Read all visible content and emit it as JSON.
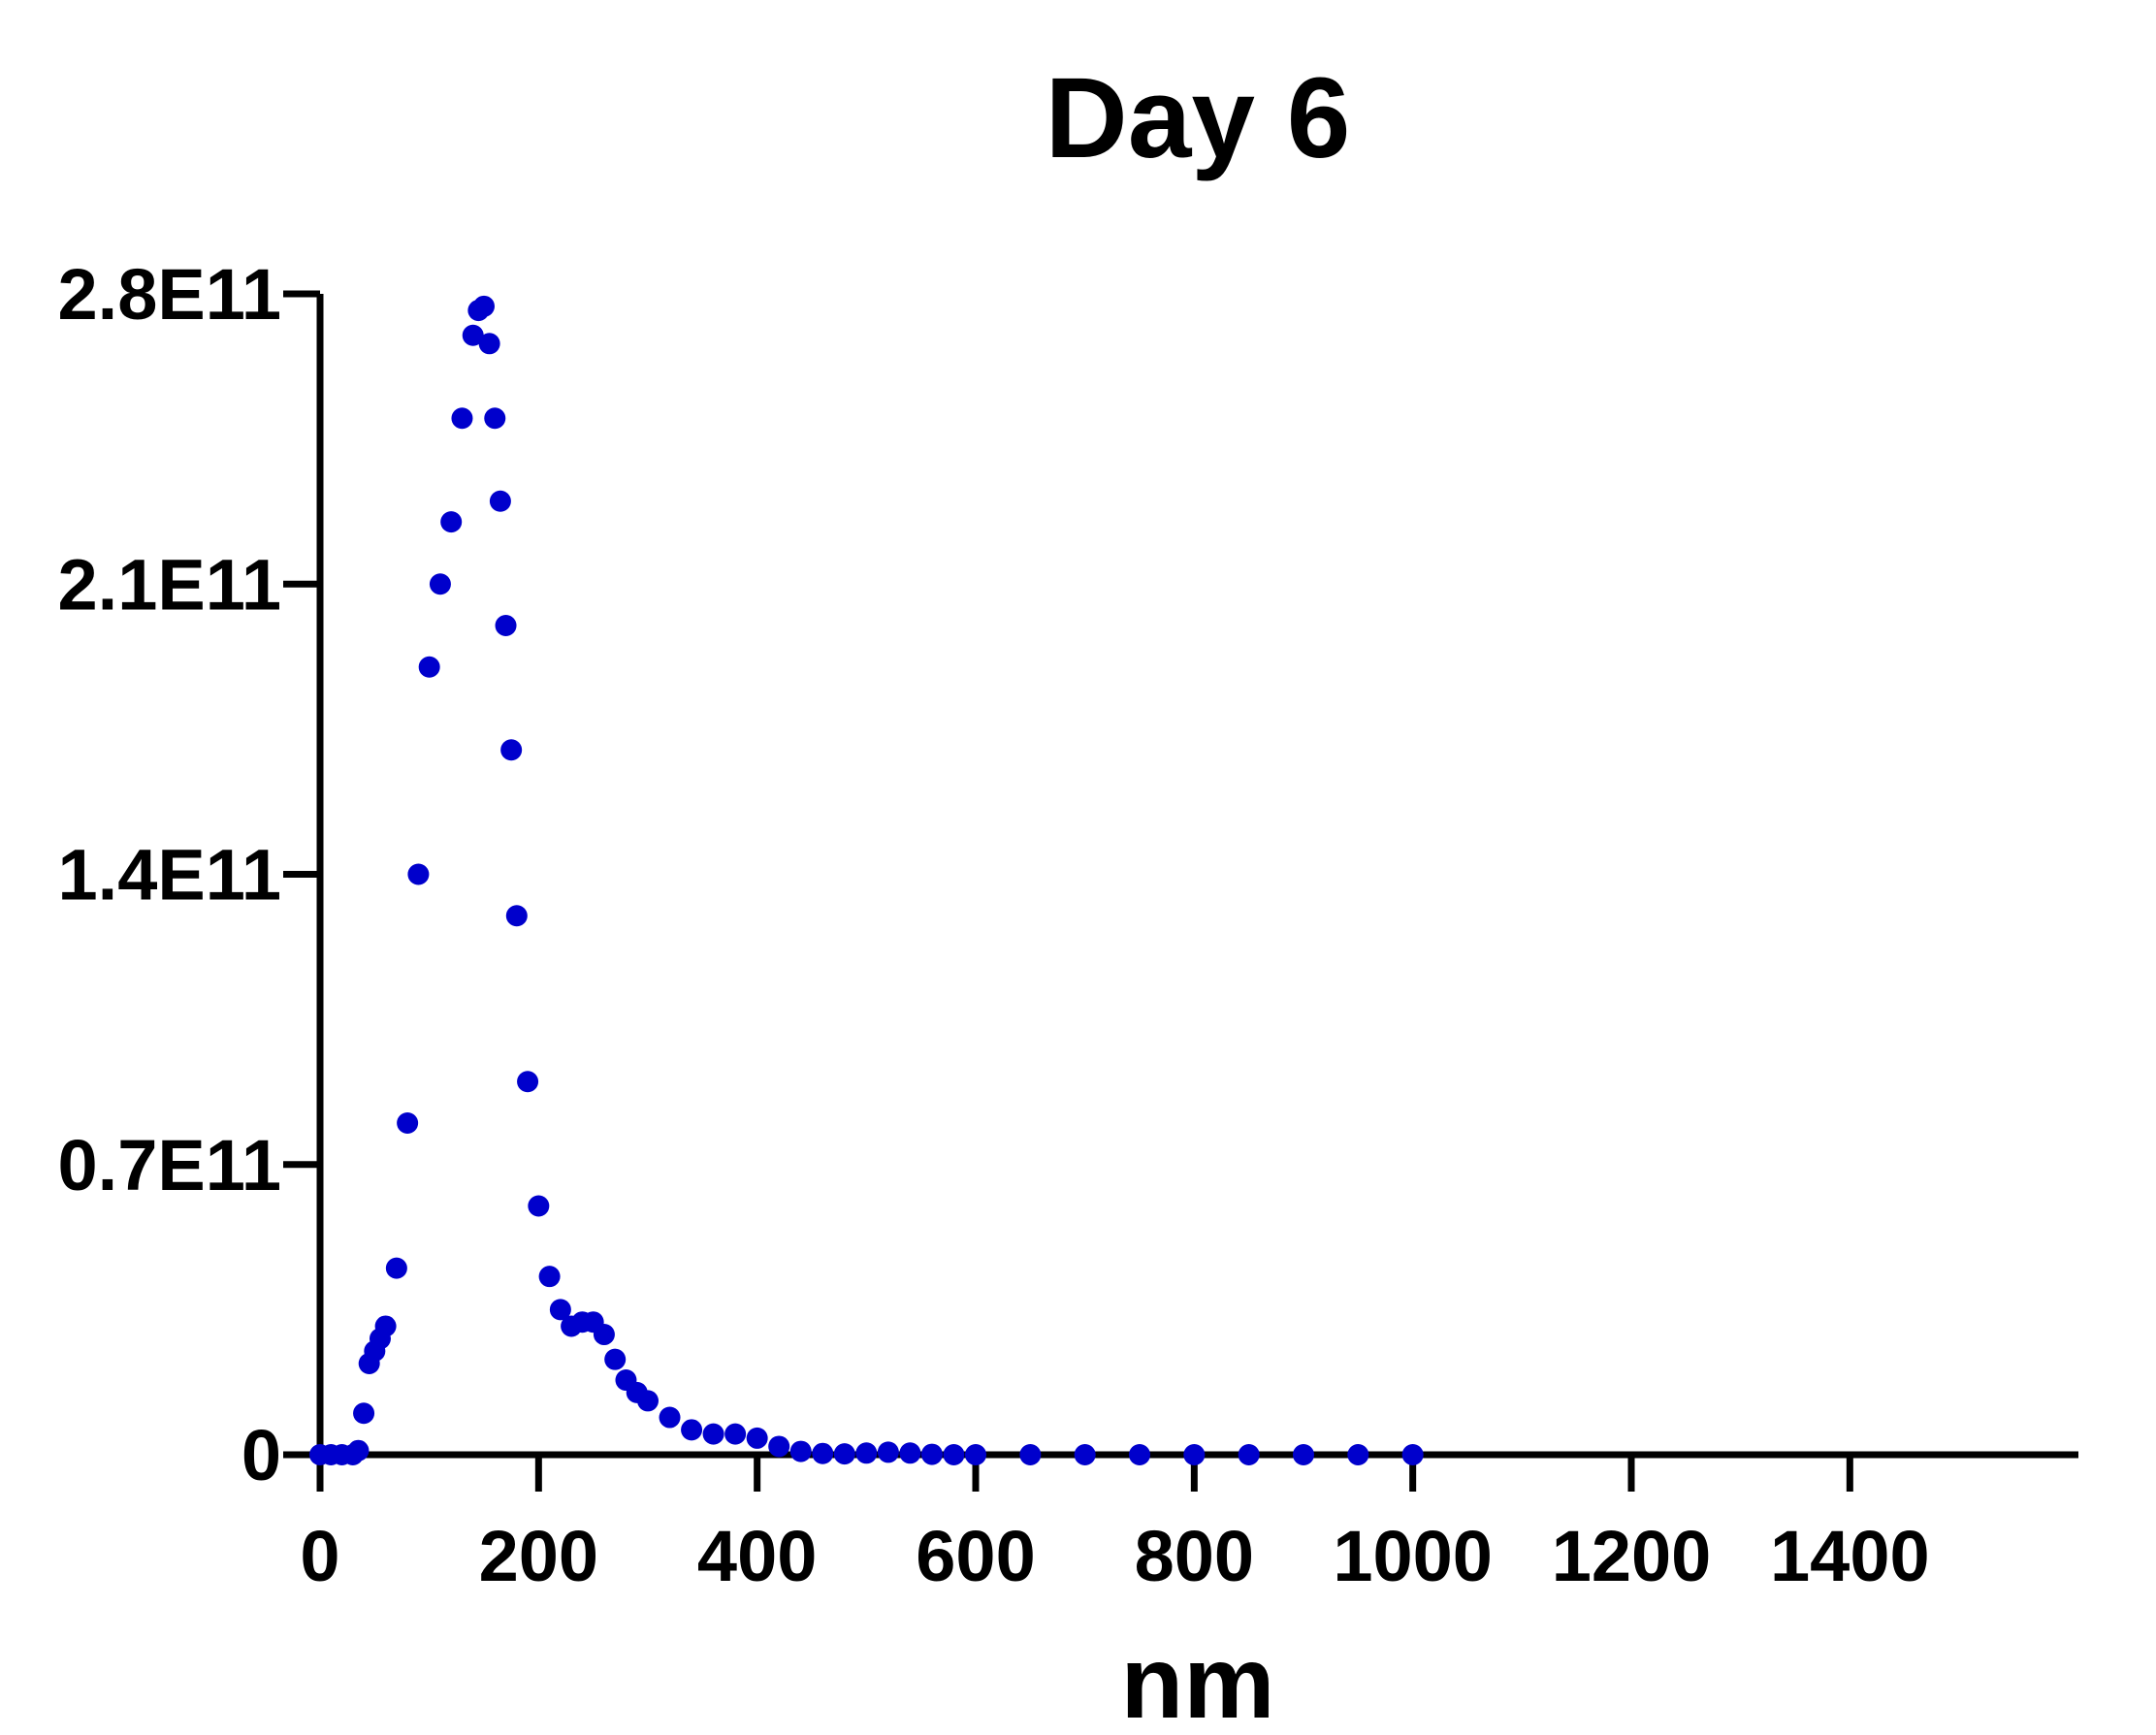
{
  "chart_data": {
    "type": "scatter",
    "title": "Day 6",
    "xlabel": "nm",
    "ylabel": "",
    "xlim": [
      0,
      1500
    ],
    "ylim": [
      0,
      280000000000
    ],
    "xticks": [
      0,
      200,
      400,
      600,
      800,
      1000,
      1200,
      1400
    ],
    "xtick_labels": [
      "0",
      "200",
      "400",
      "600",
      "800",
      "1000",
      "1200",
      "1400"
    ],
    "yticks": [
      0,
      70000000000,
      140000000000,
      210000000000,
      280000000000
    ],
    "ytick_labels": [
      "0",
      "0.7E11",
      "1.4E11",
      "2.1E11",
      "2.8E11"
    ],
    "grid": false,
    "marker_color": "#0000cc",
    "series": [
      {
        "marker": "circle",
        "x": [
          0,
          10,
          20,
          30,
          35,
          40,
          45,
          50,
          55,
          60,
          70,
          80,
          90,
          100,
          110,
          120,
          130,
          140,
          145,
          150,
          155,
          160,
          165,
          170,
          175,
          180,
          190,
          200,
          210,
          220,
          230,
          240,
          250,
          260,
          270,
          280,
          290,
          300,
          320,
          340,
          360,
          380,
          400,
          420,
          440,
          460,
          480,
          500,
          520,
          540,
          560,
          580,
          600,
          650,
          700,
          750,
          800,
          850,
          900,
          950,
          1000
        ],
        "y": [
          0,
          0,
          0,
          0,
          1000000000,
          10000000000,
          22000000000,
          25000000000,
          28000000000,
          31000000000,
          45000000000,
          80000000000,
          140000000000,
          190000000000,
          210000000000,
          225000000000,
          250000000000,
          270000000000,
          276000000000,
          277000000000,
          268000000000,
          250000000000,
          230000000000,
          200000000000,
          170000000000,
          130000000000,
          90000000000,
          60000000000,
          43000000000,
          35000000000,
          31000000000,
          32000000000,
          32000000000,
          29000000000,
          23000000000,
          18000000000,
          15000000000,
          13000000000,
          9000000000,
          6000000000,
          5000000000,
          5000000000,
          4000000000,
          2000000000,
          800000000,
          300000000,
          200000000,
          400000000,
          600000000,
          400000000,
          100000000,
          0,
          0,
          0,
          0,
          0,
          0,
          0,
          0,
          0,
          0
        ]
      }
    ]
  }
}
